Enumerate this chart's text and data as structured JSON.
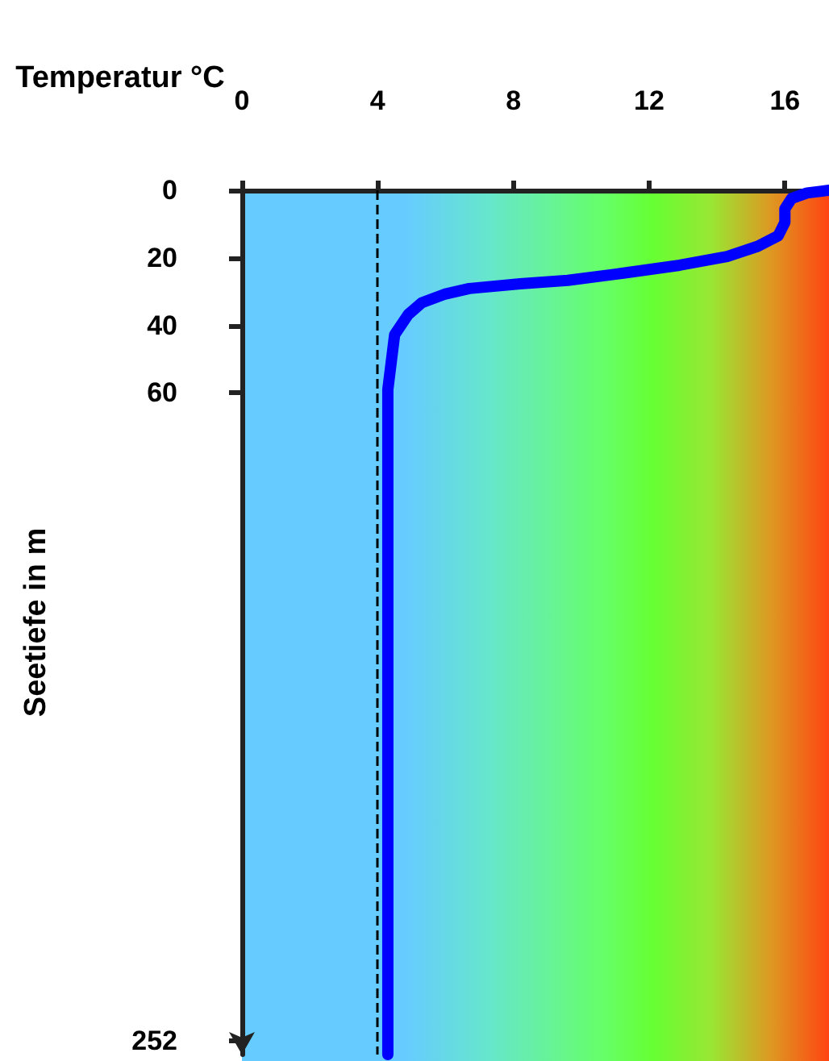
{
  "chart_data": {
    "type": "line",
    "xlabel": "Temperatur °C",
    "ylabel": "Seetiefe in m",
    "xlim": [
      0,
      17.3
    ],
    "xticks": [
      0,
      4,
      8,
      12,
      16
    ],
    "ylim": [
      256,
      0
    ],
    "yticks": [
      0,
      20,
      40,
      60,
      252
    ],
    "grid": false,
    "line_style": "solid",
    "ref_lines": [
      {
        "axis": "x",
        "value": 4,
        "color": "#000000",
        "line_style": "dashed"
      }
    ],
    "series": [
      {
        "color": "#0000ff",
        "x": [
          17.3,
          16.65,
          16.2,
          16.0,
          16.0,
          15.8,
          15.2,
          14.3,
          12.9,
          11.2,
          9.6,
          8.2,
          6.7,
          6.0,
          5.3,
          4.9,
          4.5,
          4.4,
          4.3,
          4.3,
          4.3
        ],
        "values": [
          0,
          0.8,
          2.4,
          5.5,
          9.5,
          13.5,
          16.6,
          19.6,
          22.2,
          24.6,
          26.7,
          27.7,
          29.1,
          30.7,
          33.3,
          36.8,
          42.8,
          50.9,
          59,
          100,
          256
        ]
      }
    ]
  }
}
